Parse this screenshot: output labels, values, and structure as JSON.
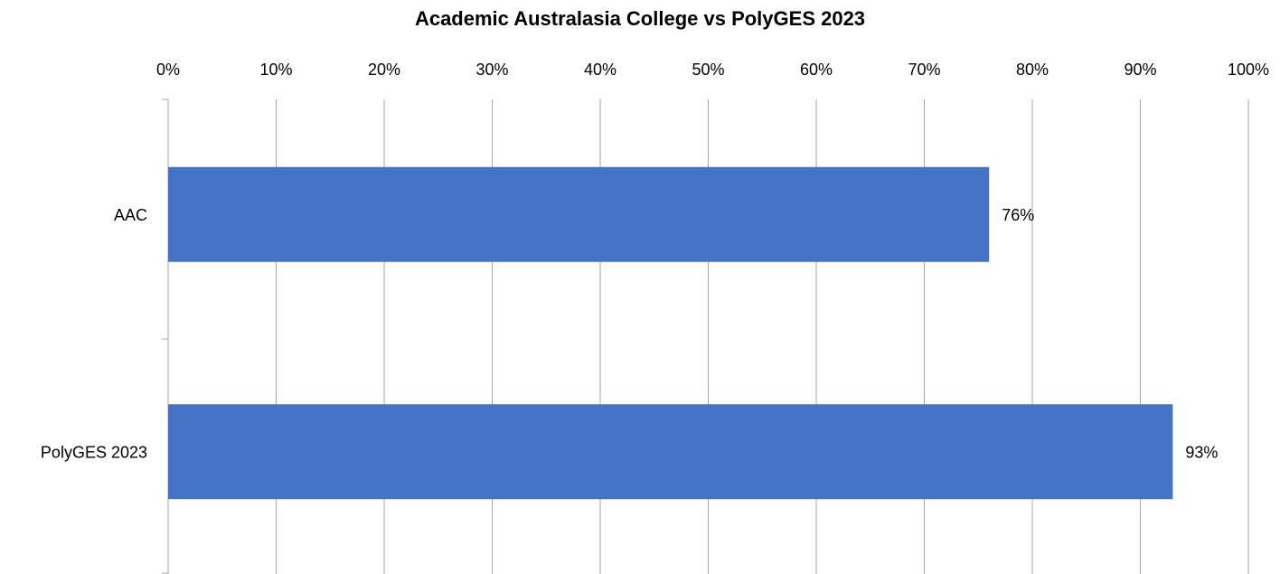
{
  "chart_data": {
    "type": "bar",
    "orientation": "horizontal",
    "title": "Academic Australasia College vs PolyGES 2023",
    "categories": [
      "AAC",
      "PolyGES 2023"
    ],
    "values": [
      76,
      93
    ],
    "value_labels": [
      "76%",
      "93%"
    ],
    "color": "#4472c4",
    "xlim": [
      0,
      100
    ],
    "xticks": [
      {
        "value": 0,
        "label": "0%"
      },
      {
        "value": 10,
        "label": "10%"
      },
      {
        "value": 20,
        "label": "20%"
      },
      {
        "value": 30,
        "label": "30%"
      },
      {
        "value": 40,
        "label": "40%"
      },
      {
        "value": 50,
        "label": "50%"
      },
      {
        "value": 60,
        "label": "60%"
      },
      {
        "value": 70,
        "label": "70%"
      },
      {
        "value": 80,
        "label": "80%"
      },
      {
        "value": 90,
        "label": "90%"
      },
      {
        "value": 100,
        "label": "100%"
      }
    ],
    "grid": true
  }
}
